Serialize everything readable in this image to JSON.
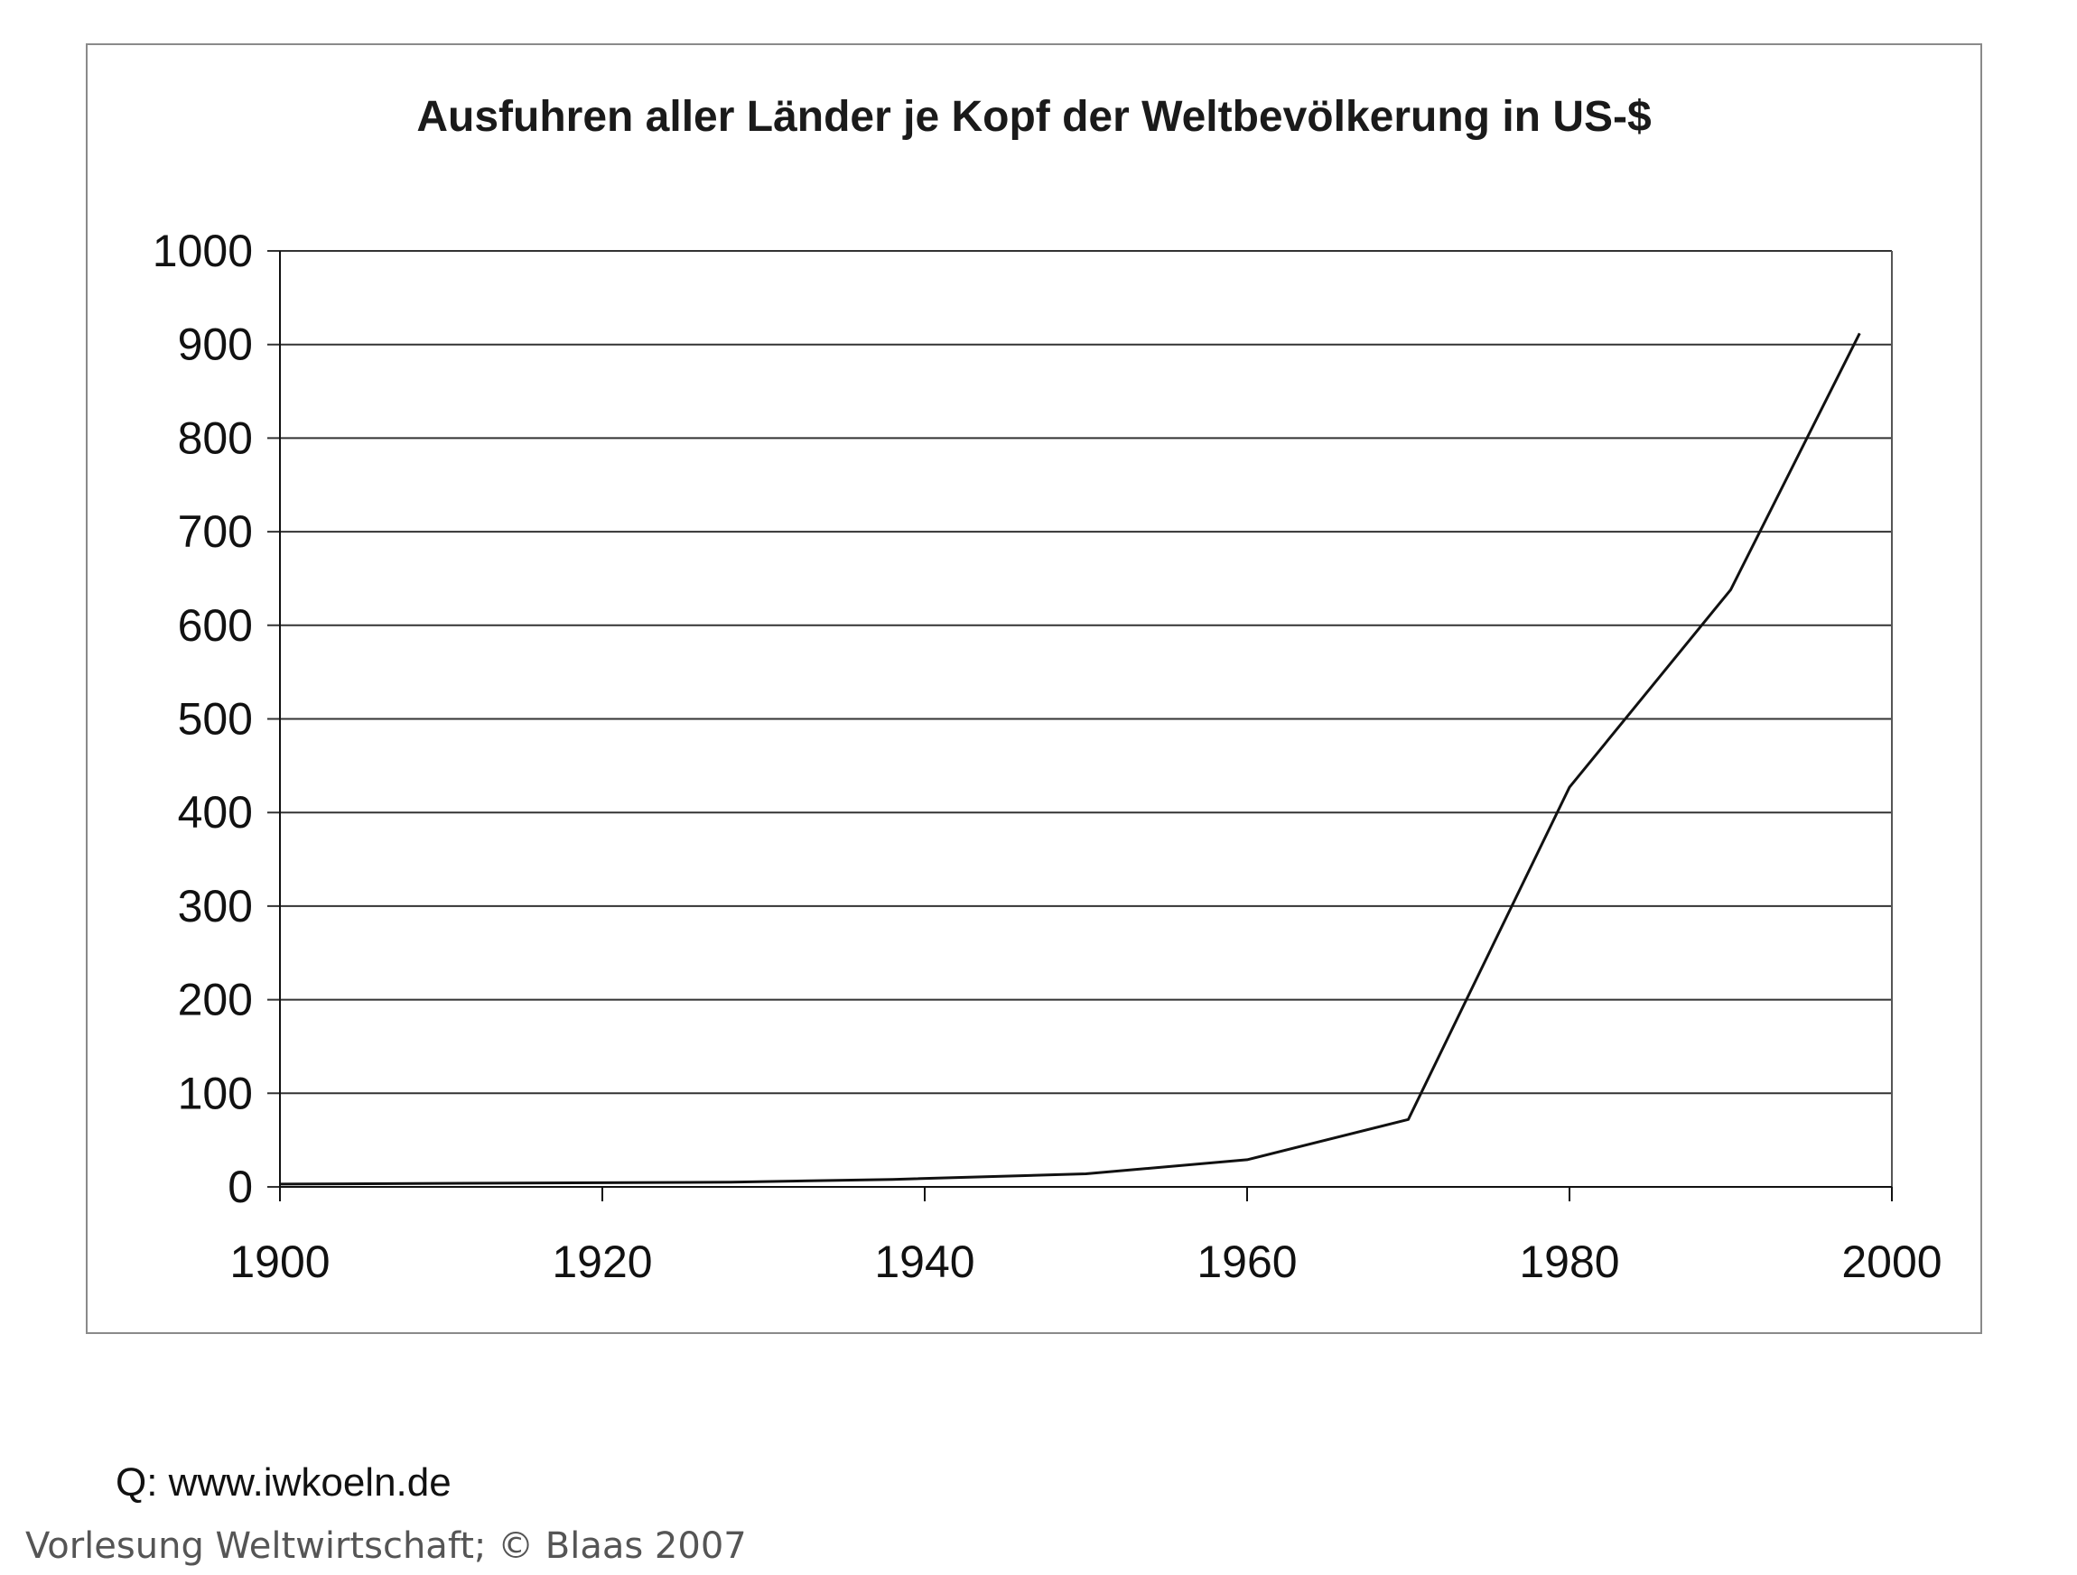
{
  "chart_data": {
    "type": "line",
    "title": "Ausfuhren aller Länder je Kopf der Weltbevölkerung in US-$",
    "xlabel": "",
    "ylabel": "",
    "xlim": [
      1900,
      2000
    ],
    "ylim": [
      0,
      1000
    ],
    "x_ticks": [
      "1900",
      "1920",
      "1940",
      "1960",
      "1980",
      "2000"
    ],
    "y_ticks": [
      "0",
      "100",
      "200",
      "300",
      "400",
      "500",
      "600",
      "700",
      "800",
      "900",
      "1000"
    ],
    "grid": "horizontal",
    "legend": "none",
    "series": [
      {
        "color": "#111111",
        "points": [
          {
            "x": 1900,
            "y": 3
          },
          {
            "x": 1913,
            "y": 4
          },
          {
            "x": 1928,
            "y": 5
          },
          {
            "x": 1938,
            "y": 8
          },
          {
            "x": 1950,
            "y": 14
          },
          {
            "x": 1960,
            "y": 29
          },
          {
            "x": 1970,
            "y": 72
          },
          {
            "x": 1980,
            "y": 427
          },
          {
            "x": 1990,
            "y": 638
          },
          {
            "x": 1998,
            "y": 912
          }
        ]
      }
    ]
  },
  "source": "Q: www.iwkoeln.de",
  "footer": "Vorlesung Weltwirtschaft; © Blaas 2007"
}
